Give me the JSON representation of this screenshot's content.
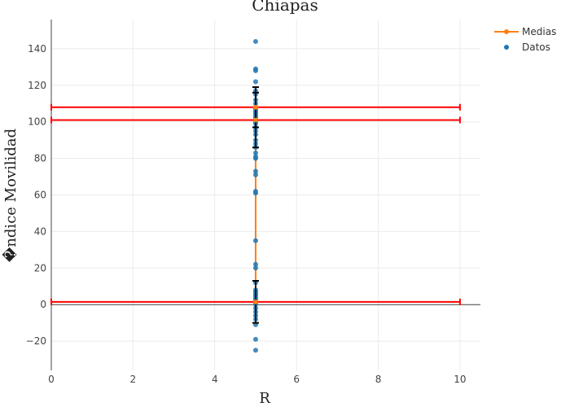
{
  "chart_data": {
    "type": "scatter",
    "title": "Chiapas",
    "xlabel": "R",
    "ylabel": "�ndice Movilidad",
    "xlim": [
      0,
      10.5
    ],
    "ylim": [
      -36,
      156
    ],
    "xticks": [
      0,
      2,
      4,
      6,
      8,
      10
    ],
    "yticks": [
      -20,
      0,
      20,
      40,
      60,
      80,
      100,
      120,
      140
    ],
    "grid": true,
    "legend_position": "top-right",
    "legend": [
      {
        "key": "medias",
        "label": "Medias",
        "color": "#ff7f0e",
        "marker": "line-dot"
      },
      {
        "key": "datos",
        "label": "Datos",
        "color": "#1f77b4",
        "marker": "dot"
      }
    ],
    "series": [
      {
        "name": "Datos",
        "color": "#1f77b4",
        "x": [
          5,
          5,
          5,
          5,
          5,
          5,
          5,
          5,
          5,
          5,
          5,
          5,
          5,
          5,
          5,
          5,
          5,
          5,
          5,
          5,
          5,
          5,
          5,
          5,
          5,
          5,
          5,
          5,
          5,
          5,
          5,
          5,
          5,
          5,
          5,
          5,
          5,
          5,
          5,
          5,
          5,
          5,
          5,
          5,
          5,
          5,
          5,
          5,
          5,
          5
        ],
        "y": [
          144,
          129,
          128,
          122,
          117,
          115,
          112,
          110,
          108,
          107,
          106,
          105,
          104,
          103,
          102,
          100,
          99,
          97,
          95,
          93,
          90,
          88,
          86,
          83,
          81,
          80,
          73,
          71,
          62,
          61,
          35,
          22,
          20,
          12,
          8,
          7,
          6,
          5,
          4,
          3,
          2,
          1,
          0,
          -2,
          -4,
          -6,
          -8,
          -11,
          -19,
          -25
        ]
      },
      {
        "name": "Medias",
        "color": "#ff7f0e",
        "x": [
          5,
          5,
          5
        ],
        "y": [
          1.5,
          101,
          108
        ]
      }
    ],
    "error_bars_vertical": [
      {
        "x": 5,
        "y": 1.5,
        "low": -10,
        "high": 13,
        "color": "#000000"
      },
      {
        "x": 5,
        "y": 101,
        "low": 86,
        "high": 116,
        "color": "#000000"
      },
      {
        "x": 5,
        "y": 108,
        "low": 97,
        "high": 119,
        "color": "#000000"
      }
    ],
    "error_bars_horizontal": [
      {
        "y": 108,
        "xmin": 0,
        "xmax": 10,
        "color": "#ff0000"
      },
      {
        "y": 101,
        "xmin": 0,
        "xmax": 10,
        "color": "#ff0000"
      },
      {
        "y": 1.5,
        "xmin": 0,
        "xmax": 10,
        "color": "#ff0000"
      }
    ]
  }
}
